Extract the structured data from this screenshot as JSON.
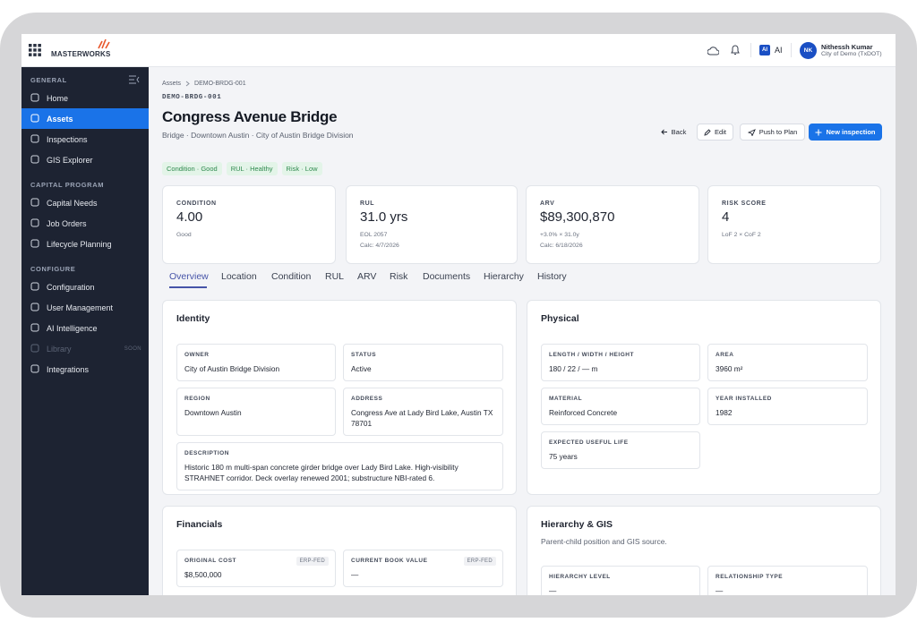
{
  "topbar": {
    "logo": "MASTERWORKS",
    "ai_icon": "AI",
    "ai_label": "AI",
    "user_initials": "NK",
    "user_name": "Nithessh Kumar",
    "user_org": "City of Demo (TxDOT)"
  },
  "sidebar": {
    "sections": [
      {
        "title": "GENERAL",
        "items": [
          {
            "label": "Home"
          },
          {
            "label": "Assets",
            "active": true
          },
          {
            "label": "Inspections"
          },
          {
            "label": "GIS Explorer"
          }
        ]
      },
      {
        "title": "CAPITAL PROGRAM",
        "items": [
          {
            "label": "Capital Needs"
          },
          {
            "label": "Job Orders"
          },
          {
            "label": "Lifecycle Planning"
          }
        ]
      },
      {
        "title": "CONFIGURE",
        "items": [
          {
            "label": "Configuration"
          },
          {
            "label": "User Management"
          },
          {
            "label": "AI Intelligence"
          },
          {
            "label": "Library",
            "badge": "SOON",
            "disabled": true
          },
          {
            "label": "Integrations"
          }
        ]
      }
    ]
  },
  "page": {
    "breadcrumb": [
      "Assets",
      "DEMO-BRDG-001"
    ],
    "asset_id": "DEMO-BRDG-001",
    "title": "Congress Avenue Bridge",
    "subtitle": "Bridge · Downtown Austin · City of Austin Bridge Division",
    "actions": [
      "Back",
      "Edit",
      "Push to Plan",
      "New inspection"
    ],
    "badges": [
      "Condition · Good",
      "RUL · Healthy",
      "Risk · Low"
    ],
    "kpis": [
      {
        "label": "CONDITION",
        "value": "4.00",
        "lines": [
          "Good"
        ]
      },
      {
        "label": "RUL",
        "value": "31.0 yrs",
        "lines": [
          "EOL 2057",
          "Calc: 4/7/2026"
        ]
      },
      {
        "label": "ARV",
        "value": "$89,300,870",
        "lines": [
          "+3.0% × 31.0y",
          "Calc: 6/18/2026"
        ]
      },
      {
        "label": "RISK SCORE",
        "value": "4",
        "lines": [
          "LoF 2 × CoF 2"
        ]
      }
    ],
    "tabs": {
      "items": [
        "Overview",
        "Location",
        "Condition",
        "RUL",
        "ARV",
        "Risk",
        "Documents",
        "Hierarchy",
        "History"
      ],
      "active": 0
    },
    "panels": [
      {
        "title": "Identity",
        "fields": [
          {
            "label": "OWNER",
            "value": "City of Austin Bridge Division"
          },
          {
            "label": "STATUS",
            "value": "Active"
          },
          {
            "label": "REGION",
            "value": "Downtown Austin"
          },
          {
            "label": "ADDRESS",
            "value": "Congress Ave at Lady Bird Lake, Austin TX 78701"
          },
          {
            "label": "DESCRIPTION",
            "value": "Historic 180 m multi-span concrete girder bridge over Lady Bird Lake. High-visibility STRAHNET corridor. Deck overlay renewed 2001; substructure NBI-rated 6.",
            "wide": true
          }
        ]
      },
      {
        "title": "Physical",
        "fields": [
          {
            "label": "LENGTH / WIDTH / HEIGHT",
            "value": "180 / 22 / — m"
          },
          {
            "label": "AREA",
            "value": "3960 m²"
          },
          {
            "label": "MATERIAL",
            "value": "Reinforced Concrete"
          },
          {
            "label": "YEAR INSTALLED",
            "value": "1982"
          },
          {
            "label": "EXPECTED USEFUL LIFE",
            "value": "75 years"
          }
        ]
      },
      {
        "title": "Financials",
        "fields": [
          {
            "label": "ORIGINAL COST",
            "tag": "ERP-FED",
            "value": "$8,500,000"
          },
          {
            "label": "CURRENT BOOK VALUE",
            "tag": "ERP-FED",
            "value": "—"
          }
        ]
      },
      {
        "title": "Hierarchy & GIS",
        "subtitle": "Parent-child position and GIS source.",
        "fields": [
          {
            "label": "HIERARCHY LEVEL",
            "value": "—"
          },
          {
            "label": "RELATIONSHIP TYPE",
            "value": "—"
          }
        ]
      }
    ]
  }
}
